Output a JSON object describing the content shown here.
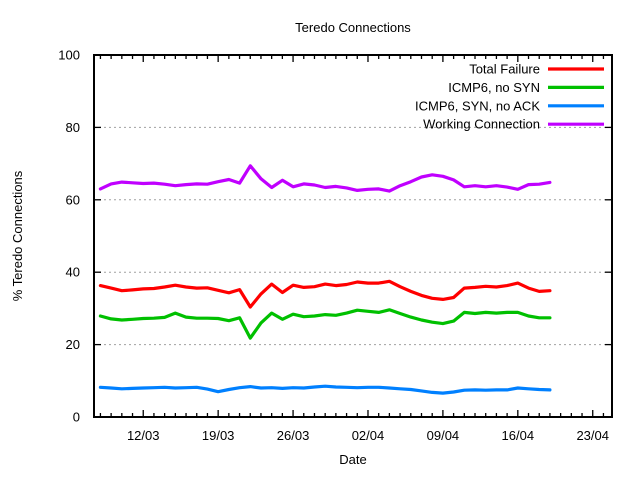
{
  "chart_data": {
    "type": "line",
    "title": "Teredo Connections",
    "xlabel": "Date",
    "ylabel": "% Teredo Connections",
    "ylim": [
      0,
      100
    ],
    "y_ticks": [
      0,
      20,
      40,
      60,
      80,
      100
    ],
    "grid_y_values": [
      20,
      40,
      60,
      80
    ],
    "grid": "dashed",
    "legend_position": "top-right",
    "background": "#ffffff",
    "text_color": "#000000",
    "grid_color": "#a0a0a0",
    "frame_color": "#000000",
    "x_domain_days": [
      -0.6,
      47.8
    ],
    "x_major_ticks": [
      {
        "day_index": 4,
        "label": "12/03"
      },
      {
        "day_index": 11,
        "label": "19/03"
      },
      {
        "day_index": 18,
        "label": "26/03"
      },
      {
        "day_index": 25,
        "label": "02/04"
      },
      {
        "day_index": 32,
        "label": "09/04"
      },
      {
        "day_index": 39,
        "label": "16/04"
      },
      {
        "day_index": 46,
        "label": "23/04"
      }
    ],
    "dates": [
      "08/03",
      "09/03",
      "10/03",
      "11/03",
      "12/03",
      "13/03",
      "14/03",
      "15/03",
      "16/03",
      "17/03",
      "18/03",
      "19/03",
      "20/03",
      "21/03",
      "22/03",
      "23/03",
      "24/03",
      "25/03",
      "26/03",
      "27/03",
      "28/03",
      "29/03",
      "30/03",
      "31/03",
      "01/04",
      "02/04",
      "03/04",
      "04/04",
      "05/04",
      "06/04",
      "07/04",
      "08/04",
      "09/04",
      "10/04",
      "11/04",
      "12/04",
      "13/04",
      "14/04",
      "15/04",
      "16/04",
      "17/04",
      "18/04",
      "19/04"
    ],
    "series": [
      {
        "name": "Total Failure",
        "color": "#ff0000",
        "values": [
          36.3,
          35.6,
          34.9,
          35.1,
          35.4,
          35.5,
          35.9,
          36.4,
          35.9,
          35.6,
          35.7,
          35.0,
          34.3,
          35.2,
          30.4,
          34.0,
          36.7,
          34.4,
          36.4,
          35.8,
          36.0,
          36.7,
          36.3,
          36.6,
          37.3,
          37.0,
          37.0,
          37.5,
          36.0,
          34.7,
          33.6,
          32.8,
          32.5,
          33.0,
          35.6,
          35.8,
          36.1,
          35.9,
          36.3,
          37.0,
          35.6,
          34.7,
          34.9
        ]
      },
      {
        "name": "ICMP6, no SYN",
        "color": "#00c000",
        "values": [
          27.9,
          27.1,
          26.8,
          27.0,
          27.2,
          27.3,
          27.5,
          28.7,
          27.6,
          27.3,
          27.3,
          27.2,
          26.6,
          27.4,
          21.8,
          26.0,
          28.7,
          27.0,
          28.4,
          27.7,
          27.9,
          28.3,
          28.1,
          28.7,
          29.5,
          29.2,
          28.9,
          29.6,
          28.6,
          27.6,
          26.8,
          26.2,
          25.8,
          26.5,
          28.9,
          28.6,
          28.9,
          28.7,
          28.9,
          28.9,
          27.9,
          27.4,
          27.4
        ]
      },
      {
        "name": "ICMP6, SYN, no ACK",
        "color": "#0080ff",
        "values": [
          8.2,
          8.0,
          7.8,
          7.9,
          8.0,
          8.1,
          8.2,
          8.0,
          8.1,
          8.2,
          7.7,
          7.0,
          7.6,
          8.1,
          8.4,
          8.0,
          8.1,
          7.9,
          8.1,
          8.0,
          8.3,
          8.5,
          8.3,
          8.2,
          8.1,
          8.2,
          8.2,
          8.0,
          7.8,
          7.6,
          7.2,
          6.8,
          6.6,
          6.9,
          7.4,
          7.5,
          7.4,
          7.5,
          7.5,
          8.0,
          7.8,
          7.6,
          7.5
        ]
      },
      {
        "name": "Working Connection",
        "color": "#c000ff",
        "values": [
          63.0,
          64.4,
          64.9,
          64.7,
          64.5,
          64.6,
          64.3,
          63.9,
          64.2,
          64.4,
          64.3,
          65.0,
          65.6,
          64.6,
          69.4,
          65.8,
          63.4,
          65.4,
          63.6,
          64.4,
          64.1,
          63.4,
          63.7,
          63.3,
          62.6,
          62.9,
          63.0,
          62.4,
          63.9,
          65.0,
          66.3,
          66.9,
          66.5,
          65.5,
          63.6,
          63.9,
          63.6,
          63.9,
          63.5,
          62.9,
          64.2,
          64.3,
          64.8
        ]
      }
    ]
  }
}
